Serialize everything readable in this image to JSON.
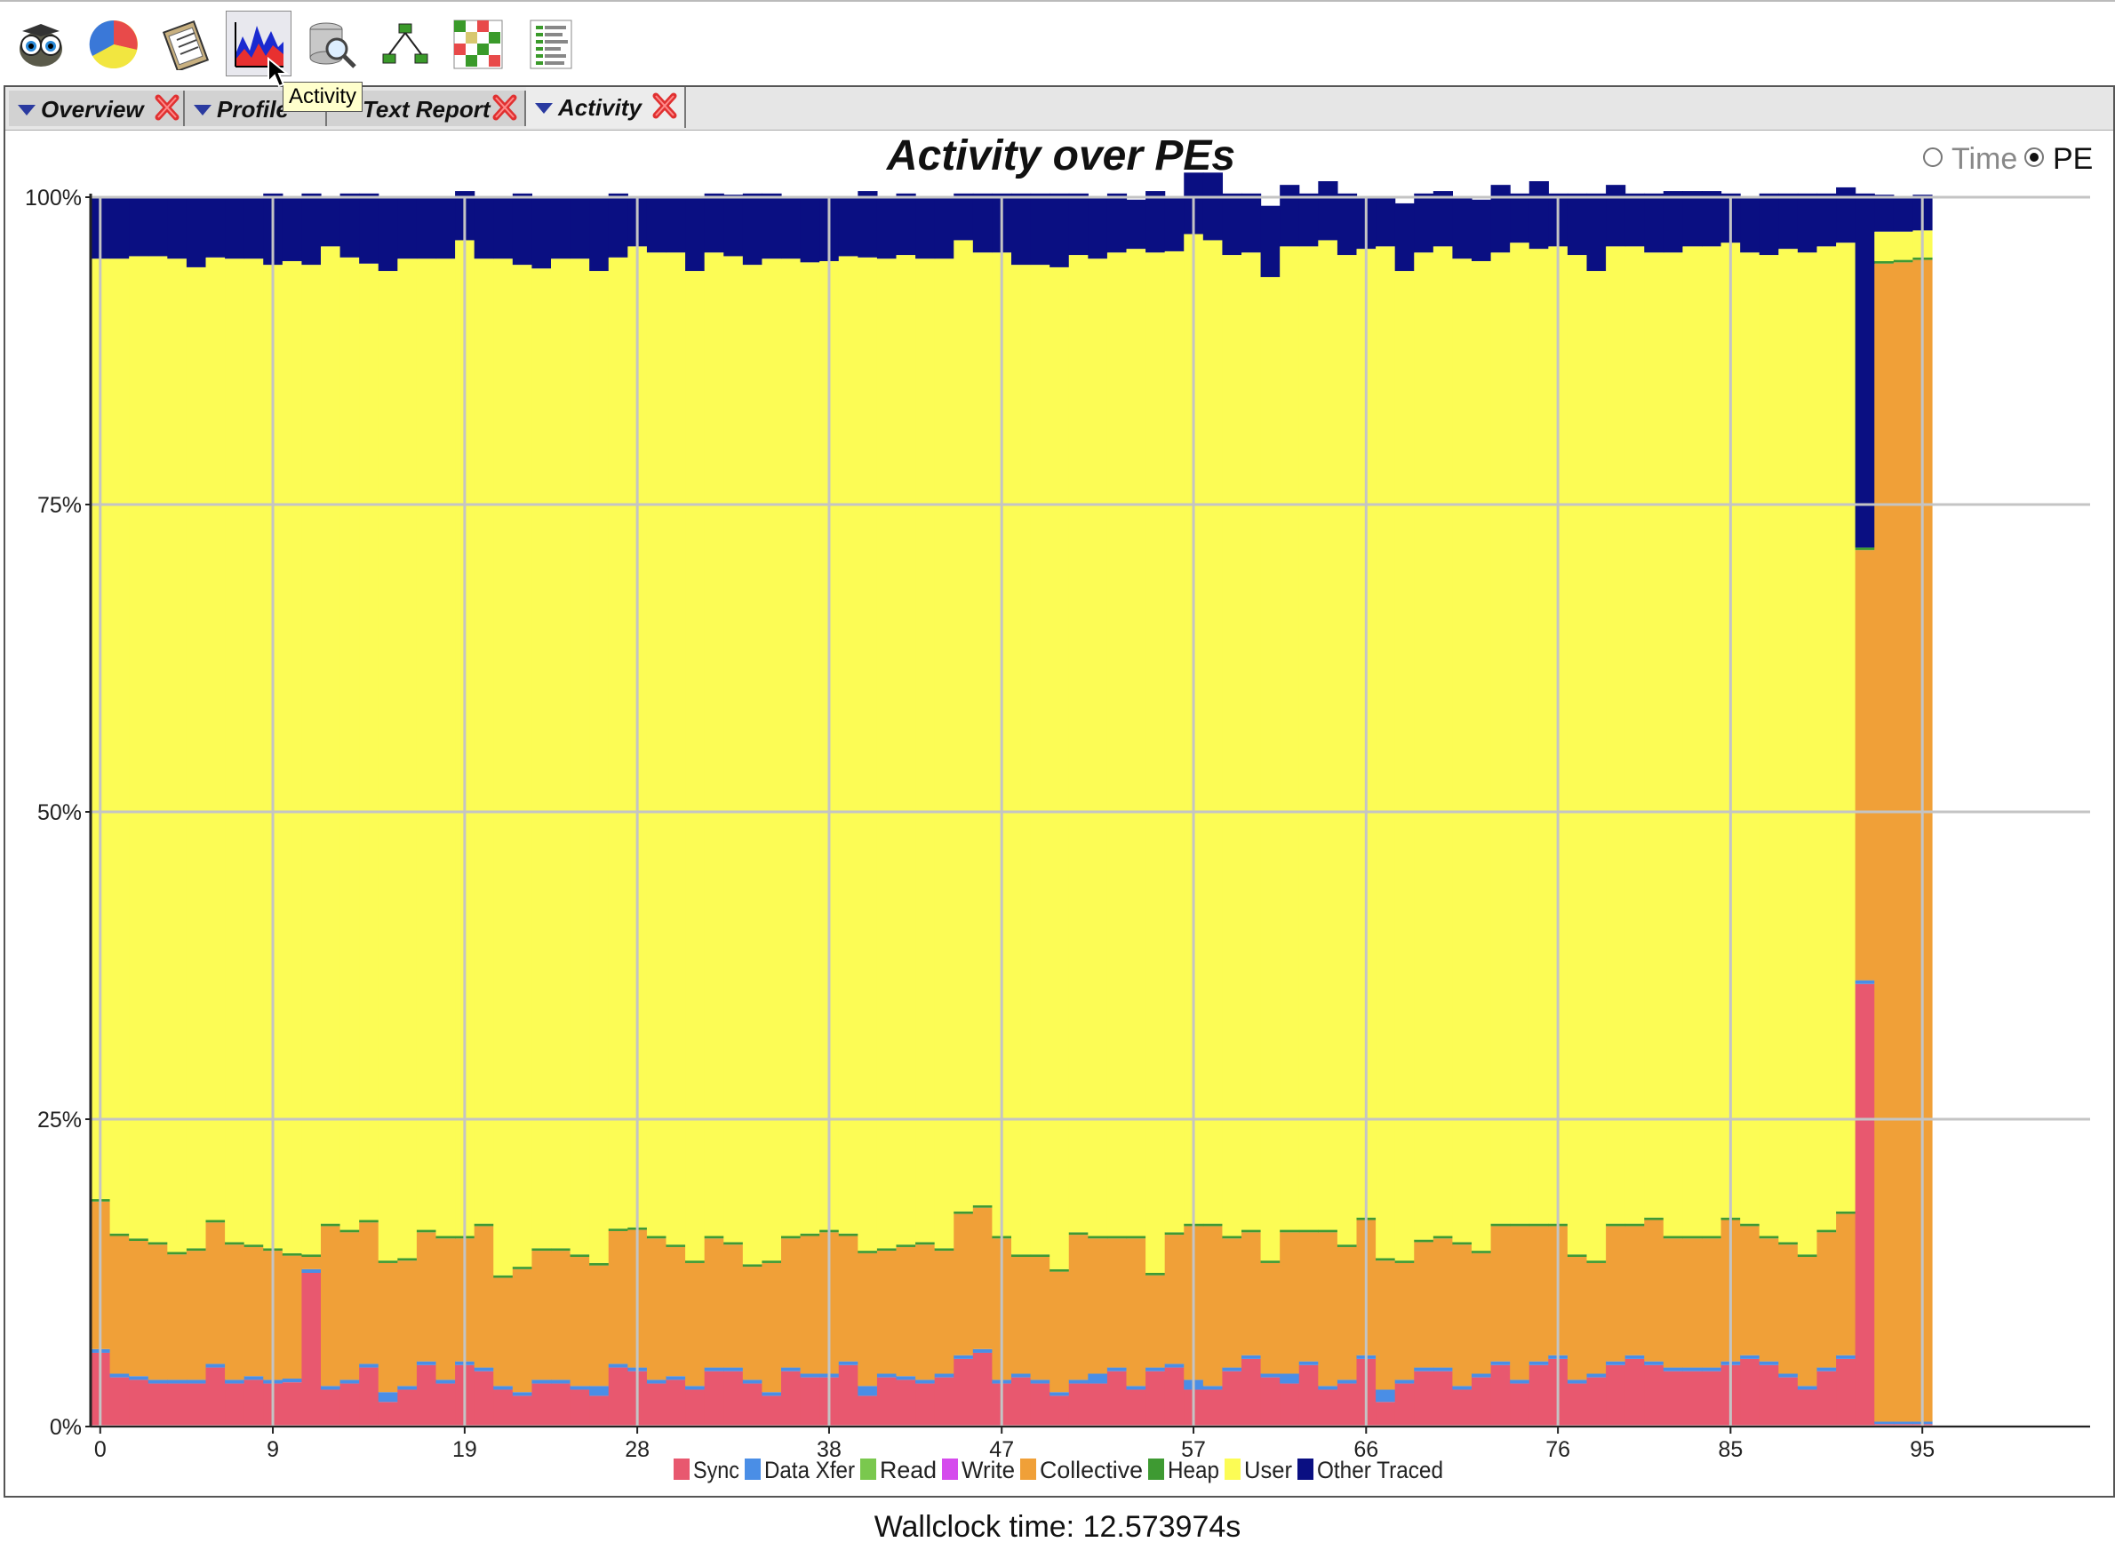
{
  "toolbar": {
    "buttons": [
      {
        "name": "owl-icon"
      },
      {
        "name": "pie-chart-icon"
      },
      {
        "name": "clipboard-report-icon"
      },
      {
        "name": "activity-chart-icon"
      },
      {
        "name": "database-search-icon"
      },
      {
        "name": "tree-icon"
      },
      {
        "name": "grid-matrix-icon"
      },
      {
        "name": "list-report-icon"
      }
    ],
    "tooltip": "Activity"
  },
  "tabs": [
    {
      "label": "Overview"
    },
    {
      "label": "Profile"
    },
    {
      "label": "Text Report"
    },
    {
      "label": "Activity"
    }
  ],
  "view": {
    "title": "Activity over PEs",
    "radio_time": "Time",
    "radio_pe": "PE",
    "selected": "PE"
  },
  "footer": {
    "wallclock": "Wallclock time: 12.573974s"
  },
  "colors": {
    "sync": "#e8586f",
    "data_xfer": "#4a8ee6",
    "read": "#7ac84e",
    "write": "#d54bed",
    "collective": "#f0a038",
    "heap": "#3e9a32",
    "user": "#fcfc55",
    "other_traced": "#0a0f82"
  },
  "chart_data": {
    "type": "bar",
    "stacked": true,
    "xlabel": "",
    "ylabel": "",
    "ylim": [
      0,
      100
    ],
    "ytick_labels": [
      "0%",
      "25%",
      "50%",
      "75%",
      "100%"
    ],
    "xtick_labels": [
      "0",
      "9",
      "19",
      "28",
      "38",
      "47",
      "57",
      "66",
      "76",
      "85",
      "95"
    ],
    "xtick_values": [
      0,
      9,
      19,
      28,
      38,
      47,
      57,
      66,
      76,
      85,
      95
    ],
    "x_count": 96,
    "legend_position": "bottom",
    "series": [
      {
        "name": "Sync",
        "key": "sync",
        "values": [
          6.0,
          4.0,
          3.8,
          3.5,
          3.5,
          3.5,
          4.8,
          3.5,
          3.8,
          3.5,
          3.6,
          12.5,
          3.0,
          3.5,
          4.8,
          2.0,
          3.0,
          5.0,
          3.5,
          5.0,
          4.5,
          3.0,
          2.5,
          3.5,
          3.5,
          3.0,
          2.5,
          4.8,
          4.5,
          3.5,
          3.8,
          3.0,
          4.5,
          4.5,
          3.5,
          2.5,
          4.5,
          4.0,
          4.0,
          5.0,
          2.5,
          4.0,
          3.8,
          3.5,
          4.0,
          5.5,
          6.0,
          3.5,
          4.0,
          3.5,
          2.5,
          3.5,
          3.5,
          4.5,
          3.0,
          4.5,
          4.8,
          3.0,
          3.0,
          4.5,
          5.5,
          4.0,
          3.5,
          5.0,
          3.0,
          3.5,
          5.5,
          2.0,
          3.5,
          4.5,
          4.5,
          3.0,
          4.0,
          5.0,
          3.5,
          5.0,
          5.5,
          3.5,
          4.0,
          5.0,
          5.5,
          5.0,
          4.5,
          4.5,
          4.5,
          5.0,
          5.5,
          5.0,
          4.0,
          3.0,
          4.5,
          5.5,
          36.0,
          0.2,
          0.2,
          0.2
        ]
      },
      {
        "name": "Data Xfer",
        "key": "data_xfer",
        "values": [
          0.3,
          0.3,
          0.3,
          0.3,
          0.3,
          0.3,
          0.3,
          0.3,
          0.3,
          0.3,
          0.3,
          0.3,
          0.3,
          0.3,
          0.3,
          0.8,
          0.3,
          0.3,
          0.3,
          0.3,
          0.3,
          0.3,
          0.3,
          0.3,
          0.3,
          0.3,
          0.8,
          0.3,
          0.3,
          0.3,
          0.3,
          0.3,
          0.3,
          0.3,
          0.3,
          0.3,
          0.3,
          0.3,
          0.3,
          0.3,
          0.8,
          0.3,
          0.3,
          0.3,
          0.3,
          0.3,
          0.3,
          0.3,
          0.3,
          0.3,
          0.3,
          0.3,
          0.8,
          0.3,
          0.3,
          0.3,
          0.3,
          0.8,
          0.3,
          0.3,
          0.3,
          0.3,
          0.8,
          0.3,
          0.3,
          0.3,
          0.3,
          1.0,
          0.3,
          0.3,
          0.3,
          0.3,
          0.3,
          0.3,
          0.3,
          0.3,
          0.3,
          0.3,
          0.3,
          0.3,
          0.3,
          0.3,
          0.3,
          0.3,
          0.3,
          0.3,
          0.3,
          0.3,
          0.3,
          0.3,
          0.3,
          0.3,
          0.3,
          0.2,
          0.2,
          0.2
        ]
      },
      {
        "name": "Read",
        "key": "read",
        "values": [
          0,
          0,
          0,
          0,
          0,
          0,
          0,
          0,
          0,
          0,
          0,
          0,
          0,
          0,
          0,
          0,
          0,
          0,
          0,
          0,
          0,
          0,
          0,
          0,
          0,
          0,
          0,
          0,
          0,
          0,
          0,
          0,
          0,
          0,
          0,
          0,
          0,
          0,
          0,
          0,
          0,
          0,
          0,
          0,
          0,
          0,
          0,
          0,
          0,
          0,
          0,
          0,
          0,
          0,
          0,
          0,
          0,
          0,
          0,
          0,
          0,
          0,
          0,
          0,
          0,
          0,
          0,
          0,
          0,
          0,
          0,
          0,
          0,
          0,
          0,
          0,
          0,
          0,
          0,
          0,
          0,
          0,
          0,
          0,
          0,
          0,
          0,
          0,
          0,
          0,
          0,
          0,
          0,
          0,
          0,
          0
        ]
      },
      {
        "name": "Write",
        "key": "write",
        "values": [
          0,
          0,
          0,
          0,
          0,
          0,
          0,
          0,
          0,
          0,
          0,
          0,
          0,
          0,
          0,
          0,
          0,
          0,
          0,
          0,
          0,
          0,
          0,
          0,
          0,
          0,
          0,
          0,
          0,
          0,
          0,
          0,
          0,
          0,
          0,
          0,
          0,
          0,
          0,
          0,
          0,
          0,
          0,
          0,
          0,
          0,
          0,
          0,
          0,
          0,
          0,
          0,
          0,
          0,
          0,
          0,
          0,
          0,
          0,
          0,
          0,
          0,
          0,
          0,
          0,
          0,
          0,
          0,
          0,
          0,
          0,
          0,
          0,
          0,
          0,
          0,
          0,
          0,
          0,
          0,
          0,
          0,
          0,
          0,
          0,
          0,
          0,
          0,
          0,
          0,
          0,
          0,
          0,
          0,
          0,
          0
        ]
      },
      {
        "name": "Collective",
        "key": "collective",
        "values": [
          12.0,
          11.2,
          11.0,
          11.0,
          10.2,
          10.5,
          11.5,
          11.0,
          10.5,
          10.5,
          10.0,
          1.0,
          13.0,
          12.0,
          11.5,
          10.5,
          10.2,
          10.5,
          11.5,
          10.0,
          11.5,
          8.8,
          10.0,
          10.5,
          10.5,
          10.5,
          9.8,
          10.8,
          11.2,
          11.5,
          10.5,
          10.0,
          10.5,
          10.0,
          9.2,
          10.5,
          10.5,
          11.2,
          11.5,
          10.2,
          10.8,
          10.0,
          10.5,
          11.0,
          10.0,
          11.5,
          11.5,
          11.5,
          9.5,
          10.0,
          9.8,
          11.8,
          11.0,
          10.5,
          12.0,
          7.5,
          10.5,
          12.5,
          13.0,
          10.5,
          10.0,
          9.0,
          11.5,
          10.5,
          12.5,
          10.8,
          11.0,
          10.5,
          9.5,
          10.2,
          10.5,
          11.5,
          9.8,
          11.0,
          12.5,
          11.0,
          10.5,
          10.0,
          9.0,
          11.0,
          10.5,
          11.5,
          10.5,
          10.5,
          10.5,
          11.5,
          10.5,
          10.0,
          10.5,
          10.5,
          11.0,
          11.5,
          35.0,
          94.2,
          94.3,
          94.5
        ]
      },
      {
        "name": "Heap",
        "key": "heap",
        "values": [
          0.2,
          0.2,
          0.2,
          0.2,
          0.2,
          0.2,
          0.2,
          0.2,
          0.2,
          0.2,
          0.2,
          0.2,
          0.2,
          0.2,
          0.2,
          0.2,
          0.2,
          0.2,
          0.2,
          0.2,
          0.2,
          0.2,
          0.2,
          0.2,
          0.2,
          0.2,
          0.2,
          0.2,
          0.2,
          0.2,
          0.2,
          0.2,
          0.2,
          0.2,
          0.2,
          0.2,
          0.2,
          0.2,
          0.2,
          0.2,
          0.2,
          0.2,
          0.2,
          0.2,
          0.2,
          0.2,
          0.2,
          0.2,
          0.2,
          0.2,
          0.2,
          0.2,
          0.2,
          0.2,
          0.2,
          0.2,
          0.2,
          0.2,
          0.2,
          0.2,
          0.2,
          0.2,
          0.2,
          0.2,
          0.2,
          0.2,
          0.2,
          0.2,
          0.2,
          0.2,
          0.2,
          0.2,
          0.2,
          0.2,
          0.2,
          0.2,
          0.2,
          0.2,
          0.2,
          0.2,
          0.2,
          0.2,
          0.2,
          0.2,
          0.2,
          0.2,
          0.2,
          0.2,
          0.2,
          0.2,
          0.2,
          0.2,
          0.2,
          0.2,
          0.2,
          0.2
        ]
      },
      {
        "name": "User",
        "key": "user",
        "values": [
          76.5,
          79.3,
          79.9,
          80.2,
          80.8,
          79.8,
          78.3,
          80.0,
          80.2,
          80.0,
          80.7,
          80.5,
          79.5,
          79.1,
          77.8,
          80.5,
          81.3,
          79.0,
          79.5,
          81.0,
          78.5,
          82.7,
          81.5,
          79.7,
          80.5,
          81.0,
          80.7,
          79.0,
          79.8,
          80.0,
          80.7,
          80.5,
          80.0,
          80.2,
          81.3,
          81.5,
          79.5,
          79.0,
          78.8,
          79.5,
          80.8,
          80.5,
          80.5,
          80.0,
          80.5,
          79.0,
          77.5,
          80.0,
          80.5,
          80.5,
          81.5,
          79.5,
          79.5,
          80.0,
          80.3,
          83.0,
          79.8,
          80.5,
          80.0,
          79.8,
          79.5,
          80.0,
          80.0,
          80.0,
          80.5,
          80.5,
          78.8,
          82.3,
          80.5,
          80.3,
          80.5,
          80.0,
          80.5,
          79.0,
          79.8,
          79.3,
          79.5,
          81.3,
          80.5,
          79.5,
          79.5,
          78.5,
          80.0,
          80.5,
          80.5,
          79.3,
          79.0,
          79.8,
          80.8,
          81.5,
          80.0,
          78.8,
          0.0,
          2.4,
          2.3,
          2.2
        ]
      },
      {
        "name": "Other Traced",
        "key": "other_traced",
        "values": [
          5.0,
          5.0,
          4.8,
          4.8,
          5.0,
          5.7,
          4.9,
          5.0,
          5.0,
          5.8,
          5.2,
          5.8,
          4.0,
          5.2,
          5.7,
          6.0,
          5.0,
          5.0,
          5.0,
          4.0,
          5.0,
          5.0,
          5.8,
          5.8,
          5.0,
          5.0,
          6.0,
          5.2,
          4.0,
          4.5,
          4.5,
          6.0,
          4.8,
          5.0,
          5.8,
          5.3,
          5.0,
          5.3,
          5.2,
          4.8,
          5.4,
          5.0,
          5.0,
          5.0,
          5.0,
          3.8,
          4.8,
          4.8,
          5.8,
          5.8,
          6.0,
          5.0,
          5.0,
          4.8,
          4.0,
          5.0,
          4.5,
          5.0,
          5.5,
          5.0,
          4.8,
          5.8,
          5.0,
          4.3,
          4.8,
          5.0,
          4.2,
          4.0,
          5.5,
          4.8,
          4.5,
          5.0,
          5.0,
          5.5,
          4.0,
          5.5,
          4.3,
          5.0,
          6.3,
          5.0,
          4.3,
          4.8,
          5.0,
          4.5,
          4.5,
          4.0,
          4.5,
          5.0,
          4.5,
          4.8,
          4.3,
          4.5,
          28.8,
          3.0,
          2.8,
          2.9
        ]
      }
    ]
  }
}
